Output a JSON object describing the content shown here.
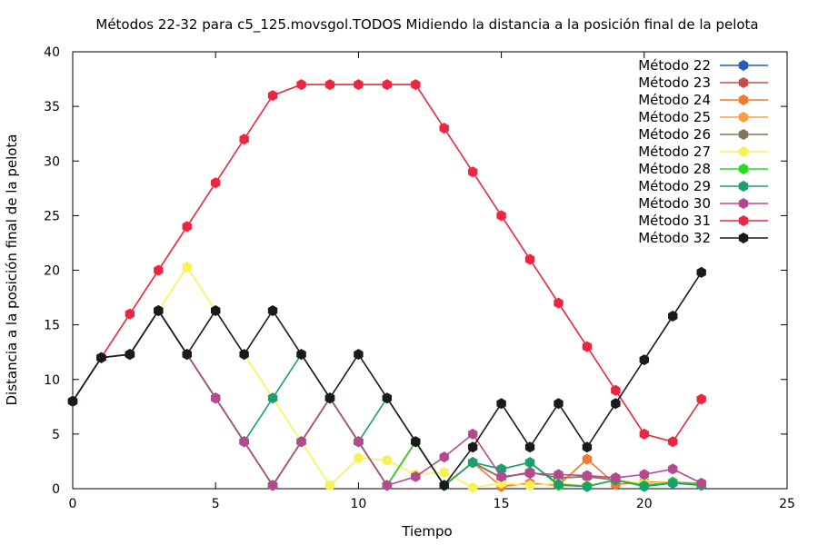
{
  "chart_data": {
    "type": "line",
    "title": "Métodos 22-32 para c5_125.movsgol.TODOS Midiendo la distancia a la posición final de la pelota",
    "xlabel": "Tiempo",
    "ylabel": "Distancia a la posición final de la pelota",
    "xlim": [
      0,
      25
    ],
    "ylim": [
      0,
      40
    ],
    "xticks": [
      0,
      5,
      10,
      15,
      20,
      25
    ],
    "yticks": [
      0,
      5,
      10,
      15,
      20,
      25,
      30,
      35,
      40
    ],
    "legend_position": "top-right",
    "grid": false,
    "x": [
      0,
      1,
      2,
      3,
      4,
      5,
      6,
      7,
      8,
      9,
      10,
      11,
      12,
      13,
      14,
      15,
      16,
      17,
      18,
      19,
      20,
      21,
      22
    ],
    "series": [
      {
        "name": "Método 22",
        "color": "#1f5fb4",
        "values": [
          8,
          12,
          12.3,
          16.3,
          12.3,
          8.3,
          4.3,
          0.3,
          4.3,
          8.3,
          4.3,
          0.3,
          4.3,
          0.3,
          2.4,
          1.0,
          1.5,
          1.0,
          1.1,
          0.8,
          0.3,
          0.6,
          0.4
        ]
      },
      {
        "name": "Método 23",
        "color": "#c2504a",
        "values": [
          8,
          12,
          12.3,
          16.3,
          12.3,
          8.3,
          4.3,
          0.3,
          4.3,
          8.3,
          4.3,
          0.3,
          4.3,
          0.3,
          2.4,
          1.0,
          1.5,
          1.0,
          1.1,
          0.8,
          0.3,
          0.6,
          0.4
        ]
      },
      {
        "name": "Método 24",
        "color": "#f07a30",
        "values": [
          8,
          12,
          12.3,
          16.3,
          12.3,
          8.3,
          4.3,
          0.3,
          4.3,
          8.3,
          4.3,
          0.3,
          4.3,
          0.3,
          2.4,
          0.2,
          0.5,
          0.3,
          2.7,
          0.4,
          0.6,
          0.6,
          0.5
        ]
      },
      {
        "name": "Método 25",
        "color": "#f4a040",
        "values": [
          8,
          12,
          12.3,
          16.3,
          12.3,
          8.3,
          4.3,
          0.3,
          4.3,
          8.3,
          4.3,
          0.3,
          4.3,
          0.3,
          2.4,
          1.0,
          1.5,
          1.0,
          1.1,
          0.8,
          0.3,
          0.6,
          0.4
        ]
      },
      {
        "name": "Método 26",
        "color": "#857656",
        "values": [
          8,
          12,
          12.3,
          16.3,
          12.3,
          8.3,
          4.3,
          0.3,
          4.3,
          8.3,
          4.3,
          0.3,
          4.3,
          0.3,
          2.4,
          1.0,
          1.5,
          1.0,
          1.1,
          0.8,
          0.3,
          0.6,
          0.4
        ]
      },
      {
        "name": "Método 27",
        "color": "#f8f25a",
        "values": [
          8,
          12,
          12.3,
          16.3,
          20.3,
          16.3,
          12.3,
          8.3,
          4.3,
          0.3,
          2.8,
          2.6,
          1.3,
          1.5,
          0.1,
          0.5,
          0.3,
          0.5,
          0.3,
          0.8,
          0.5,
          0.6,
          0.4
        ]
      },
      {
        "name": "Método 28",
        "color": "#22dd22",
        "values": [
          8,
          12,
          12.3,
          16.3,
          12.3,
          8.3,
          4.3,
          0.3,
          4.3,
          8.3,
          4.3,
          0.3,
          4.3,
          0.3,
          2.4,
          1.8,
          2.4,
          0.3,
          0.2,
          0.8,
          0.3,
          0.6,
          0.4
        ]
      },
      {
        "name": "Método 29",
        "color": "#1a9f6e",
        "values": [
          8,
          12,
          12.3,
          16.3,
          12.3,
          8.3,
          4.3,
          8.3,
          12.3,
          8.3,
          4.3,
          8.3,
          4.3,
          0.3,
          2.4,
          1.8,
          2.4,
          0.4,
          0.2,
          0.8,
          0.2,
          0.5,
          0.3
        ]
      },
      {
        "name": "Método 30",
        "color": "#b5498f",
        "values": [
          8,
          12,
          12.3,
          16.3,
          12.3,
          8.3,
          4.3,
          0.3,
          4.3,
          8.3,
          4.3,
          0.3,
          1.1,
          2.9,
          5.0,
          1.1,
          1.4,
          1.3,
          1.2,
          1.0,
          1.3,
          1.8,
          0.5
        ]
      },
      {
        "name": "Método 31",
        "color": "#ec2540",
        "values": [
          8,
          12,
          16,
          20,
          24,
          28,
          32,
          36,
          37,
          37,
          37,
          37,
          37,
          33,
          29,
          25,
          21,
          17,
          13,
          9,
          5,
          4.3,
          8.2
        ]
      },
      {
        "name": "Método 32",
        "color": "#1a1a1a",
        "values": [
          8,
          12,
          12.3,
          16.3,
          12.3,
          16.3,
          12.3,
          16.3,
          12.3,
          8.3,
          12.3,
          8.3,
          4.3,
          0.3,
          3.8,
          7.8,
          3.8,
          7.8,
          3.8,
          7.8,
          11.8,
          15.8,
          19.8
        ]
      }
    ]
  }
}
